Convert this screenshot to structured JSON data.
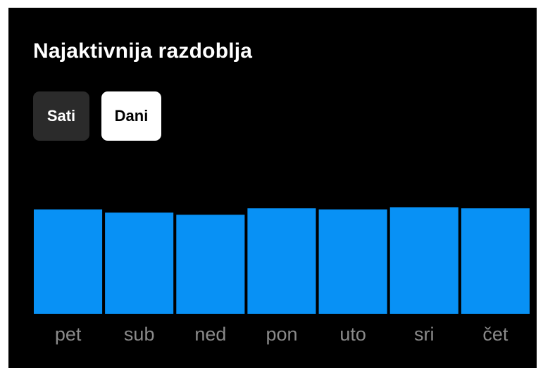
{
  "card": {
    "title": "Najaktivnija razdoblja"
  },
  "toggle": {
    "hours_label": "Sati",
    "days_label": "Dani",
    "selected": "Dani"
  },
  "colors": {
    "background": "#000000",
    "bar": "#0891f5",
    "tick_label": "#8a8a8a",
    "toggle_active_bg": "#ffffff",
    "toggle_inactive_bg": "#2b2b2b"
  },
  "chart_data": {
    "type": "bar",
    "categories": [
      "pet",
      "sub",
      "ned",
      "pon",
      "uto",
      "sri",
      "čet"
    ],
    "values": [
      0.97,
      0.94,
      0.92,
      0.98,
      0.97,
      0.99,
      0.98
    ],
    "ylim": [
      0,
      1
    ],
    "grid": false
  }
}
